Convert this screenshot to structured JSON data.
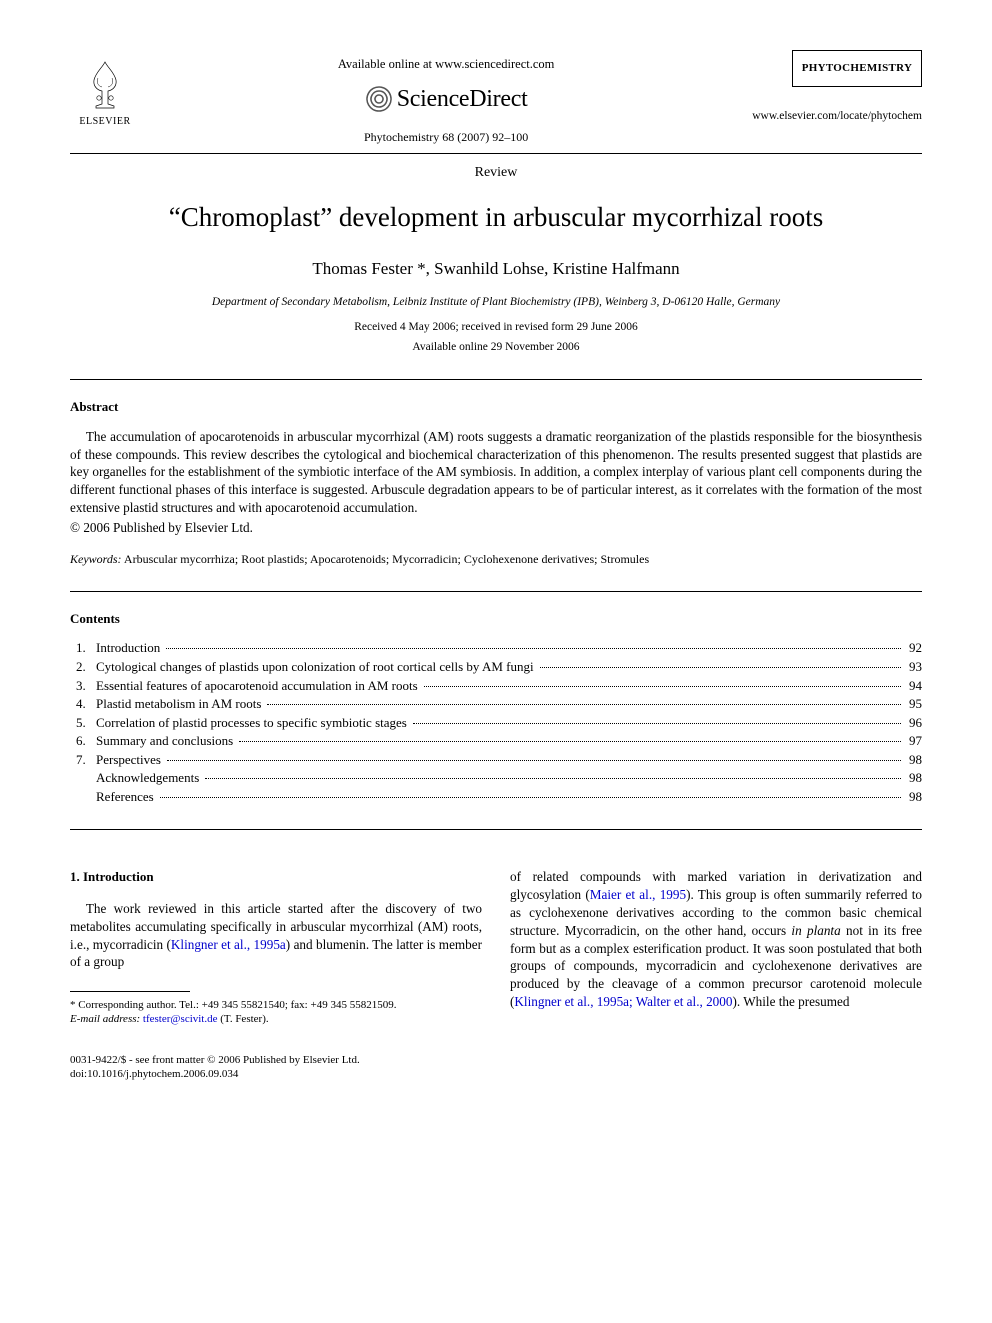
{
  "header": {
    "available_text": "Available online at www.sciencedirect.com",
    "publisher_name": "ELSEVIER",
    "platform_name": "ScienceDirect",
    "citation": "Phytochemistry 68 (2007) 92–100",
    "journal_box": "PHYTOCHEMISTRY",
    "journal_url": "www.elsevier.com/locate/phytochem"
  },
  "article": {
    "type": "Review",
    "title": "“Chromoplast” development in arbuscular mycorrhizal roots",
    "authors": "Thomas Fester *, Swanhild Lohse, Kristine Halfmann",
    "affiliation": "Department of Secondary Metabolism, Leibniz Institute of Plant Biochemistry (IPB), Weinberg 3, D-06120 Halle, Germany",
    "received": "Received 4 May 2006; received in revised form 29 June 2006",
    "available": "Available online 29 November 2006"
  },
  "abstract": {
    "heading": "Abstract",
    "text": "The accumulation of apocarotenoids in arbuscular mycorrhizal (AM) roots suggests a dramatic reorganization of the plastids responsible for the biosynthesis of these compounds. This review describes the cytological and biochemical characterization of this phenomenon. The results presented suggest that plastids are key organelles for the establishment of the symbiotic interface of the AM symbiosis. In addition, a complex interplay of various plant cell components during the different functional phases of this interface is suggested. Arbuscule degradation appears to be of particular interest, as it correlates with the formation of the most extensive plastid structures and with apocarotenoid accumulation.",
    "copyright": "© 2006 Published by Elsevier Ltd."
  },
  "keywords": {
    "label": "Keywords:",
    "text": " Arbuscular mycorrhiza; Root plastids; Apocarotenoids; Mycorradicin; Cyclohexenone derivatives; Stromules"
  },
  "contents": {
    "heading": "Contents",
    "items": [
      {
        "num": "1.",
        "title": "Introduction",
        "page": "92"
      },
      {
        "num": "2.",
        "title": "Cytological changes of plastids upon colonization of root cortical cells by AM fungi",
        "page": "93"
      },
      {
        "num": "3.",
        "title": "Essential features of apocarotenoid accumulation in AM roots",
        "page": "94"
      },
      {
        "num": "4.",
        "title": "Plastid metabolism in AM roots",
        "page": "95"
      },
      {
        "num": "5.",
        "title": "Correlation of plastid processes to specific symbiotic stages",
        "page": "96"
      },
      {
        "num": "6.",
        "title": "Summary and conclusions",
        "page": "97"
      },
      {
        "num": "7.",
        "title": "Perspectives",
        "page": "98"
      },
      {
        "num": "",
        "title": "Acknowledgements",
        "page": "98"
      },
      {
        "num": "",
        "title": "References",
        "page": "98"
      }
    ]
  },
  "body": {
    "intro_heading": "1. Introduction",
    "col1_a": "The work reviewed in this article started after the discovery of two metabolites accumulating specifically in arbuscular mycorrhizal (AM) roots, i.e., mycorradicin (",
    "col1_link1": "Klingner et al., 1995a",
    "col1_b": ") and blumenin. The latter is member of a group",
    "col2_a": "of related compounds with marked variation in derivatization and glycosylation (",
    "col2_link1": "Maier et al., 1995",
    "col2_b": "). This group is often summarily referred to as cyclohexenone derivatives according to the common basic chemical structure. Mycorradicin, on the other hand, occurs ",
    "col2_ital": "in planta",
    "col2_c": " not in its free form but as a complex esterification product. It was soon postulated that both groups of compounds, mycorradicin and cyclohexenone derivatives are produced by the cleavage of a common precursor carotenoid molecule (",
    "col2_link2": "Klingner et al., 1995a; Walter et al., 2000",
    "col2_d": "). While the presumed"
  },
  "footnote": {
    "corr": "* Corresponding author. Tel.: +49 345 55821540; fax: +49 345 55821509.",
    "email_label": "E-mail address:",
    "email": "tfester@scivit.de",
    "email_suffix": " (T. Fester)."
  },
  "bottom": {
    "line1": "0031-9422/$ - see front matter © 2006 Published by Elsevier Ltd.",
    "line2": "doi:10.1016/j.phytochem.2006.09.034"
  },
  "colors": {
    "text": "#000000",
    "background": "#ffffff",
    "link": "#0000cc",
    "logo_orange": "#f58220"
  }
}
